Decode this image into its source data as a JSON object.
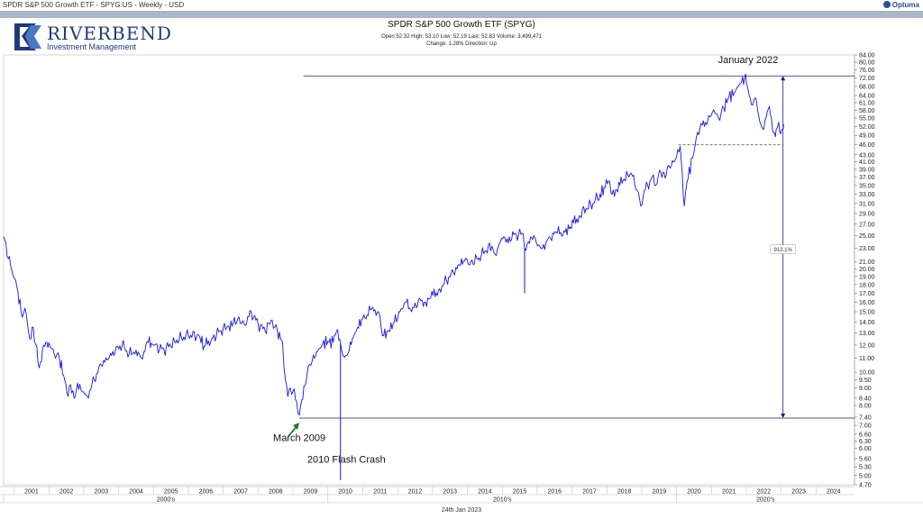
{
  "window": {
    "title": "SPDR S&P 500 Growth ETF - SPYG:US - Weekly - USD",
    "brand": "Optuma"
  },
  "logo": {
    "name": "RIVERBEND",
    "sub": "Investment Management"
  },
  "header": {
    "title": "SPDR S&P 500 Growth ETF (SPYG)",
    "line1": "Open:52.32   High: 53.10   Low: 52.19   Last: 52.83   Volume: 3,499,471",
    "line2": "Change: 1.28%   Direction: Up"
  },
  "footer": {
    "date": "24th Jan 2023"
  },
  "colors": {
    "price": "#1515e6",
    "levels": "#1a1a80",
    "arrow": "#1a7a2a",
    "decade_band": "#e8e8e8"
  },
  "chart_data": {
    "type": "line",
    "title": "SPDR S&P 500 Growth ETF (SPYG)",
    "y_scale": "log",
    "ylim": [
      4.7,
      84.0
    ],
    "xlim": [
      2000.7,
      2025.1
    ],
    "y_ticks": [
      "84.00",
      "80.00",
      "76.00",
      "72.00",
      "68.00",
      "64.00",
      "61.00",
      "58.00",
      "55.00",
      "52.00",
      "49.00",
      "46.00",
      "43.00",
      "41.00",
      "39.00",
      "37.00",
      "35.00",
      "33.00",
      "31.00",
      "29.00",
      "27.00",
      "25.00",
      "23.00",
      "21.00",
      "20.00",
      "19.00",
      "18.00",
      "17.00",
      "16.00",
      "15.00",
      "14.00",
      "13.00",
      "12.00",
      "11.00",
      "10.00",
      "9.50",
      "9.00",
      "8.40",
      "8.00",
      "7.40",
      "7.00",
      "6.60",
      "6.30",
      "6.00",
      "5.60",
      "5.30",
      "5.00",
      "4.70"
    ],
    "x_years": [
      "2001",
      "2002",
      "2003",
      "2004",
      "2005",
      "2006",
      "2007",
      "2008",
      "2009",
      "2010",
      "2011",
      "2012",
      "2013",
      "2014",
      "2015",
      "2016",
      "2017",
      "2018",
      "2019",
      "2020",
      "2021",
      "2022",
      "2023",
      "2024"
    ],
    "decades": [
      {
        "label": "2000's",
        "from": 2000.7,
        "to": 2010.0
      },
      {
        "label": "2010's",
        "from": 2010.0,
        "to": 2020.0
      },
      {
        "label": "2020's",
        "from": 2020.0,
        "to": 2025.1
      }
    ],
    "series": [
      {
        "values_xy": [
          [
            2000.7,
            24.8
          ],
          [
            2000.9,
            20.5
          ],
          [
            2001.05,
            18.5
          ],
          [
            2001.2,
            15.0
          ],
          [
            2001.35,
            14.8
          ],
          [
            2001.45,
            12.5
          ],
          [
            2001.55,
            13.5
          ],
          [
            2001.72,
            10.3
          ],
          [
            2001.85,
            12.0
          ],
          [
            2002.0,
            12.2
          ],
          [
            2002.15,
            11.3
          ],
          [
            2002.3,
            11.0
          ],
          [
            2002.45,
            9.5
          ],
          [
            2002.55,
            8.5
          ],
          [
            2002.62,
            9.2
          ],
          [
            2002.72,
            8.4
          ],
          [
            2002.82,
            9.3
          ],
          [
            2002.95,
            8.8
          ],
          [
            2003.1,
            8.5
          ],
          [
            2003.3,
            9.5
          ],
          [
            2003.5,
            10.5
          ],
          [
            2003.7,
            10.9
          ],
          [
            2003.9,
            11.5
          ],
          [
            2004.1,
            12.0
          ],
          [
            2004.3,
            11.3
          ],
          [
            2004.5,
            11.6
          ],
          [
            2004.65,
            11.0
          ],
          [
            2004.85,
            12.2
          ],
          [
            2005.0,
            12.0
          ],
          [
            2005.3,
            11.6
          ],
          [
            2005.6,
            12.3
          ],
          [
            2005.8,
            12.6
          ],
          [
            2006.0,
            12.8
          ],
          [
            2006.3,
            12.8
          ],
          [
            2006.45,
            11.9
          ],
          [
            2006.7,
            12.6
          ],
          [
            2006.9,
            13.2
          ],
          [
            2007.1,
            13.5
          ],
          [
            2007.25,
            13.6
          ],
          [
            2007.45,
            14.5
          ],
          [
            2007.6,
            13.8
          ],
          [
            2007.8,
            15.0
          ],
          [
            2008.0,
            13.8
          ],
          [
            2008.2,
            13.2
          ],
          [
            2008.4,
            14.2
          ],
          [
            2008.55,
            13.2
          ],
          [
            2008.7,
            12.2
          ],
          [
            2008.78,
            9.5
          ],
          [
            2008.85,
            8.5
          ],
          [
            2008.92,
            9.0
          ],
          [
            2009.0,
            8.8
          ],
          [
            2009.1,
            8.2
          ],
          [
            2009.18,
            7.5
          ],
          [
            2009.25,
            8.3
          ],
          [
            2009.4,
            9.8
          ],
          [
            2009.55,
            10.8
          ],
          [
            2009.7,
            11.5
          ],
          [
            2009.85,
            12.1
          ],
          [
            2010.0,
            12.3
          ],
          [
            2010.15,
            12.2
          ],
          [
            2010.28,
            13.3
          ],
          [
            2010.4,
            11.5
          ],
          [
            2010.55,
            11.2
          ],
          [
            2010.7,
            12.5
          ],
          [
            2010.85,
            13.5
          ],
          [
            2011.0,
            14.3
          ],
          [
            2011.25,
            15.3
          ],
          [
            2011.45,
            15.0
          ],
          [
            2011.6,
            12.8
          ],
          [
            2011.75,
            13.2
          ],
          [
            2011.9,
            14.0
          ],
          [
            2012.1,
            15.3
          ],
          [
            2012.25,
            16.0
          ],
          [
            2012.4,
            15.0
          ],
          [
            2012.6,
            16.3
          ],
          [
            2012.8,
            16.0
          ],
          [
            2012.95,
            16.5
          ],
          [
            2013.2,
            17.5
          ],
          [
            2013.4,
            18.5
          ],
          [
            2013.6,
            19.5
          ],
          [
            2013.8,
            20.5
          ],
          [
            2013.95,
            21.5
          ],
          [
            2014.1,
            21.0
          ],
          [
            2014.3,
            21.3
          ],
          [
            2014.5,
            22.5
          ],
          [
            2014.7,
            23.3
          ],
          [
            2014.8,
            22.0
          ],
          [
            2014.95,
            24.0
          ],
          [
            2015.2,
            24.8
          ],
          [
            2015.4,
            25.2
          ],
          [
            2015.6,
            25.3
          ],
          [
            2015.64,
            23.0
          ],
          [
            2015.75,
            24.0
          ],
          [
            2015.9,
            25.0
          ],
          [
            2016.05,
            23.5
          ],
          [
            2016.15,
            23.0
          ],
          [
            2016.35,
            24.8
          ],
          [
            2016.55,
            25.5
          ],
          [
            2016.8,
            25.6
          ],
          [
            2016.95,
            26.5
          ],
          [
            2017.2,
            28.5
          ],
          [
            2017.4,
            30.0
          ],
          [
            2017.6,
            31.0
          ],
          [
            2017.8,
            33.0
          ],
          [
            2017.95,
            34.5
          ],
          [
            2018.08,
            36.0
          ],
          [
            2018.15,
            33.0
          ],
          [
            2018.25,
            34.0
          ],
          [
            2018.5,
            36.5
          ],
          [
            2018.7,
            38.0
          ],
          [
            2018.8,
            35.0
          ],
          [
            2018.9,
            33.5
          ],
          [
            2018.97,
            30.5
          ],
          [
            2019.1,
            34.0
          ],
          [
            2019.3,
            37.0
          ],
          [
            2019.4,
            35.0
          ],
          [
            2019.55,
            38.0
          ],
          [
            2019.7,
            37.5
          ],
          [
            2019.85,
            40.0
          ],
          [
            2020.0,
            42.5
          ],
          [
            2020.1,
            45.5
          ],
          [
            2020.16,
            38.0
          ],
          [
            2020.22,
            30.5
          ],
          [
            2020.3,
            36.0
          ],
          [
            2020.45,
            42.0
          ],
          [
            2020.6,
            50.0
          ],
          [
            2020.7,
            53.0
          ],
          [
            2020.8,
            52.0
          ],
          [
            2020.95,
            55.5
          ],
          [
            2021.1,
            57.0
          ],
          [
            2021.2,
            55.0
          ],
          [
            2021.35,
            59.0
          ],
          [
            2021.5,
            63.5
          ],
          [
            2021.65,
            65.0
          ],
          [
            2021.8,
            69.0
          ],
          [
            2021.95,
            72.0
          ],
          [
            2022.0,
            70.0
          ],
          [
            2022.08,
            64.0
          ],
          [
            2022.18,
            60.0
          ],
          [
            2022.26,
            63.0
          ],
          [
            2022.35,
            56.0
          ],
          [
            2022.42,
            52.5
          ],
          [
            2022.5,
            51.0
          ],
          [
            2022.6,
            57.5
          ],
          [
            2022.66,
            59.5
          ],
          [
            2022.72,
            55.0
          ],
          [
            2022.78,
            50.0
          ],
          [
            2022.83,
            48.5
          ],
          [
            2022.88,
            51.5
          ],
          [
            2022.93,
            53.5
          ],
          [
            2022.98,
            49.5
          ],
          [
            2023.03,
            51.0
          ],
          [
            2023.07,
            52.8
          ]
        ]
      }
    ],
    "spikes": [
      {
        "x": 2010.36,
        "low": 4.85
      },
      {
        "x": 2015.64,
        "low": 17.0
      }
    ],
    "levels": [
      {
        "value": 73.0,
        "from": 2009.3,
        "to": 2025.1
      },
      {
        "value": 7.35,
        "from": 2009.18,
        "to": 2025.1
      }
    ],
    "dashed_level": {
      "value": 46.0,
      "from": 2020.05,
      "to": 2023.05
    },
    "measure": {
      "x": 2023.05,
      "from": 7.35,
      "to": 73.0,
      "label": "913.1%",
      "label_value": 22.8
    },
    "annotations": [
      {
        "text": "January 2022",
        "x": 2022.05,
        "y": 79.5
      },
      {
        "text": "March 2009",
        "x": 2009.18,
        "y": 6.3
      },
      {
        "text": "2010 Flash Crash",
        "x": 2010.53,
        "y": 5.45
      }
    ]
  }
}
